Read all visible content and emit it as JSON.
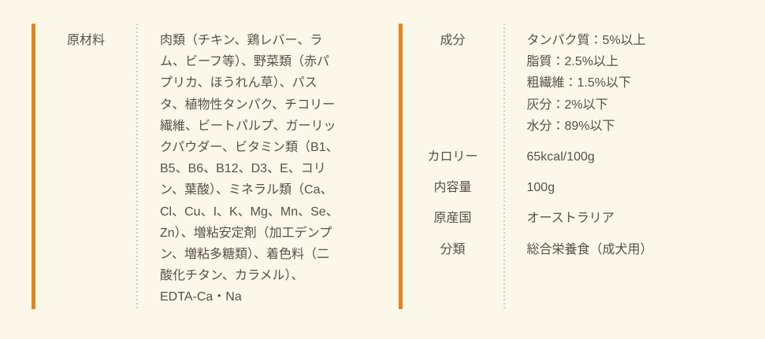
{
  "page": {
    "background_color": "#fcf8e9",
    "accent_color": "#e8821f",
    "text_color": "#595047",
    "divider_dot_color": "#cbcbcb"
  },
  "ingredients_section": {
    "label": "原材料",
    "value_lines": [
      "肉類（チキン、鶏レバー、ラ",
      "ム、ビーフ等）、野菜類（赤パ",
      "プリカ、ほうれん草）、パス",
      "タ、植物性タンパク、チコリー",
      "繊維、ビートパルプ、ガーリッ",
      "クパウダー、ビタミン類（B1、",
      "B5、B6、B12、D3、E、コリ",
      "ン、葉酸）、ミネラル類（Ca、",
      "Cl、Cu、I、K、Mg、Mn、Se、",
      "Zn）、増粘安定剤（加工デンプ",
      "ン、増粘多糖類）、着色料（二",
      "酸化チタン、カラメル）、",
      "EDTA-Ca・Na"
    ]
  },
  "nutrition_section": {
    "rows": [
      {
        "label": "成分",
        "value_lines": [
          "タンパク質：5%以上",
          "脂質：2.5%以上",
          "粗繊維：1.5%以下",
          "灰分：2%以下",
          "水分：89%以下"
        ]
      },
      {
        "label": "カロリー",
        "value_lines": [
          "65kcal/100g"
        ]
      },
      {
        "label": "内容量",
        "value_lines": [
          "100g"
        ]
      },
      {
        "label": "原産国",
        "value_lines": [
          "オーストラリア"
        ]
      },
      {
        "label": "分類",
        "value_lines": [
          "総合栄養食（成犬用）"
        ]
      }
    ]
  }
}
